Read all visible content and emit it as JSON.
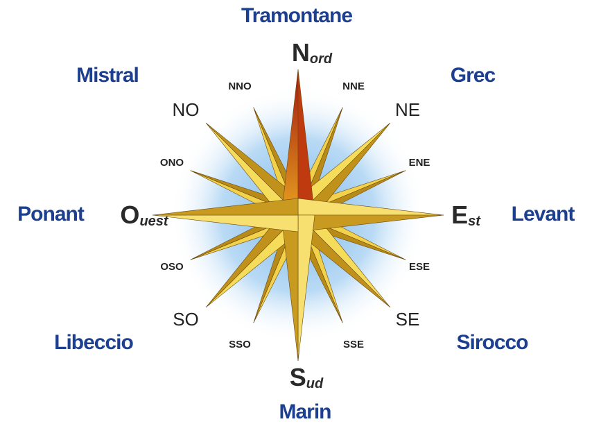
{
  "winds": [
    "Tramontane",
    "Grec",
    "Levant",
    "Sirocco",
    "Marin",
    "Libeccio",
    "Ponant",
    "Mistral"
  ],
  "cardinals": [
    {
      "letter": "N",
      "suffix": "ord"
    },
    {
      "letter": "E",
      "suffix": "st"
    },
    {
      "letter": "S",
      "suffix": "ud"
    },
    {
      "letter": "O",
      "suffix": "uest"
    }
  ],
  "intercardinals": [
    "NE",
    "SE",
    "SO",
    "NO"
  ],
  "secondary": [
    "NNE",
    "ENE",
    "ESE",
    "SSE",
    "SSO",
    "OSO",
    "ONO",
    "NNO"
  ]
}
